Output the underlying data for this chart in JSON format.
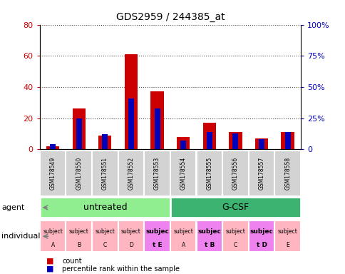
{
  "title": "GDS2959 / 244385_at",
  "samples": [
    "GSM178549",
    "GSM178550",
    "GSM178551",
    "GSM178552",
    "GSM178553",
    "GSM178554",
    "GSM178555",
    "GSM178556",
    "GSM178557",
    "GSM178558"
  ],
  "count_values": [
    2,
    26,
    9,
    61,
    37,
    8,
    17,
    11,
    7,
    11
  ],
  "percentile_values": [
    4,
    25,
    12,
    41,
    33,
    7,
    14,
    13,
    8,
    14
  ],
  "agents": [
    {
      "label": "untreated",
      "start": 0,
      "end": 5,
      "color": "#90EE90"
    },
    {
      "label": "G-CSF",
      "start": 5,
      "end": 10,
      "color": "#3CB371"
    }
  ],
  "indiv_labels_top": [
    "subject",
    "subject",
    "subject",
    "subject",
    "subjec",
    "subject",
    "subjec",
    "subject",
    "subjec",
    "subject"
  ],
  "indiv_labels_bot": [
    "A",
    "B",
    "C",
    "D",
    "t E",
    "A",
    "t B",
    "C",
    "t D",
    "E"
  ],
  "indiv_bold": [
    false,
    false,
    false,
    false,
    true,
    false,
    true,
    false,
    true,
    false
  ],
  "indiv_colors": [
    "#FFB6C1",
    "#FFB6C1",
    "#FFB6C1",
    "#FFB6C1",
    "#EE82EE",
    "#FFB6C1",
    "#EE82EE",
    "#FFB6C1",
    "#EE82EE",
    "#FFB6C1"
  ],
  "ylim_left": [
    0,
    80
  ],
  "ylim_right": [
    0,
    100
  ],
  "yticks_left": [
    0,
    20,
    40,
    60,
    80
  ],
  "yticks_right": [
    0,
    25,
    50,
    75,
    100
  ],
  "ytick_labels_left": [
    "0",
    "20",
    "40",
    "60",
    "80"
  ],
  "ytick_labels_right": [
    "0",
    "25%",
    "50%",
    "75%",
    "100%"
  ],
  "count_color": "#CC0000",
  "percentile_color": "#0000BB",
  "sample_box_color": "#D3D3D3",
  "fig_width": 4.85,
  "fig_height": 3.84,
  "fig_dpi": 100
}
